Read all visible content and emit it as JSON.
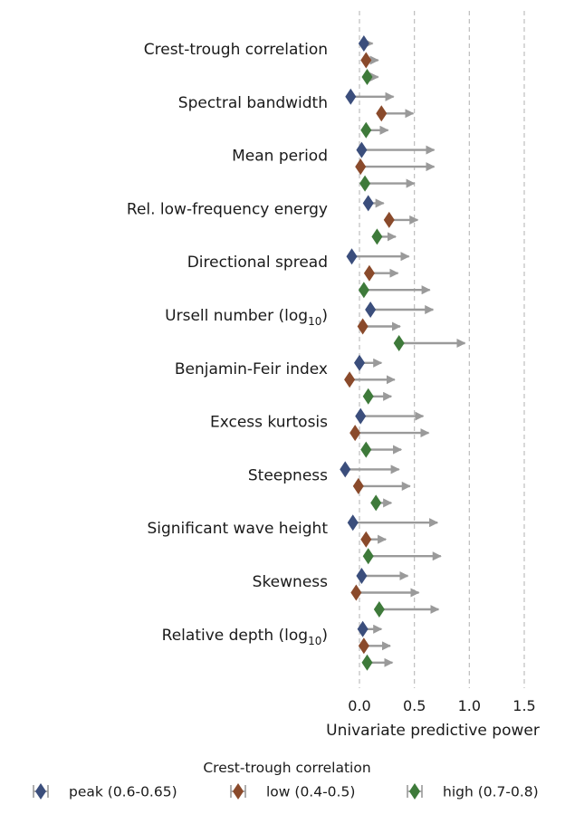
{
  "chart_data": {
    "type": "scatter",
    "xlabel": "Univariate predictive power",
    "xlim": [
      -0.15,
      1.6
    ],
    "xticks": [
      0.0,
      0.5,
      1.0,
      1.5
    ],
    "xtick_labels": [
      "0.0",
      "0.5",
      "1.0",
      "1.5"
    ],
    "gridlines": "vertical dashed at x ticks",
    "legend": {
      "title": "Crest-trough correlation",
      "placement": "bottom",
      "entries": [
        "peak (0.6-0.65)",
        "low (0.4-0.5)",
        "high (0.7-0.8)"
      ]
    },
    "series": [
      {
        "name": "peak (0.6-0.65)",
        "color": "#3b4e7c",
        "marker": "diamond"
      },
      {
        "name": "low (0.4-0.5)",
        "color": "#8a4a2b",
        "marker": "diamond"
      },
      {
        "name": "high (0.7-0.8)",
        "color": "#3e7a3a",
        "marker": "diamond"
      }
    ],
    "arrow_color": "#9a9a9a",
    "categories": [
      {
        "label": "Crest-trough correlation",
        "label_main": "Crest-trough correlation",
        "label_sub": "",
        "label_tail": "",
        "rows": [
          {
            "series": 0,
            "start": 0.04,
            "end": 0.12
          },
          {
            "series": 1,
            "start": 0.06,
            "end": 0.17
          },
          {
            "series": 2,
            "start": 0.07,
            "end": 0.17
          }
        ]
      },
      {
        "label": "Spectral bandwidth",
        "label_main": "Spectral bandwidth",
        "label_sub": "",
        "label_tail": "",
        "rows": [
          {
            "series": 0,
            "start": -0.08,
            "end": 0.31
          },
          {
            "series": 1,
            "start": 0.2,
            "end": 0.49
          },
          {
            "series": 2,
            "start": 0.06,
            "end": 0.26
          }
        ]
      },
      {
        "label": "Mean period",
        "label_main": "Mean period",
        "label_sub": "",
        "label_tail": "",
        "rows": [
          {
            "series": 0,
            "start": 0.02,
            "end": 0.68
          },
          {
            "series": 1,
            "start": 0.01,
            "end": 0.68
          },
          {
            "series": 2,
            "start": 0.05,
            "end": 0.5
          }
        ]
      },
      {
        "label": "Rel. low-frequency energy",
        "label_main": "Rel. low-frequency energy",
        "label_sub": "",
        "label_tail": "",
        "rows": [
          {
            "series": 0,
            "start": 0.08,
            "end": 0.22
          },
          {
            "series": 1,
            "start": 0.27,
            "end": 0.53
          },
          {
            "series": 2,
            "start": 0.16,
            "end": 0.33
          }
        ]
      },
      {
        "label": "Directional spread",
        "label_main": "Directional spread",
        "label_sub": "",
        "label_tail": "",
        "rows": [
          {
            "series": 0,
            "start": -0.07,
            "end": 0.45
          },
          {
            "series": 1,
            "start": 0.09,
            "end": 0.35
          },
          {
            "series": 2,
            "start": 0.04,
            "end": 0.64
          }
        ]
      },
      {
        "label": "Ursell number (log10)",
        "label_main": "Ursell number (log",
        "label_sub": "10",
        "label_tail": ")",
        "rows": [
          {
            "series": 0,
            "start": 0.1,
            "end": 0.67
          },
          {
            "series": 1,
            "start": 0.03,
            "end": 0.37
          },
          {
            "series": 2,
            "start": 0.36,
            "end": 0.96
          }
        ]
      },
      {
        "label": "Benjamin-Feir index",
        "label_main": "Benjamin-Feir index",
        "label_sub": "",
        "label_tail": "",
        "rows": [
          {
            "series": 0,
            "start": 0.0,
            "end": 0.2
          },
          {
            "series": 1,
            "start": -0.09,
            "end": 0.32
          },
          {
            "series": 2,
            "start": 0.08,
            "end": 0.29
          }
        ]
      },
      {
        "label": "Excess kurtosis",
        "label_main": "Excess kurtosis",
        "label_sub": "",
        "label_tail": "",
        "rows": [
          {
            "series": 0,
            "start": 0.01,
            "end": 0.58
          },
          {
            "series": 1,
            "start": -0.04,
            "end": 0.63
          },
          {
            "series": 2,
            "start": 0.06,
            "end": 0.38
          }
        ]
      },
      {
        "label": "Steepness",
        "label_main": "Steepness",
        "label_sub": "",
        "label_tail": "",
        "rows": [
          {
            "series": 0,
            "start": -0.13,
            "end": 0.36
          },
          {
            "series": 1,
            "start": -0.01,
            "end": 0.46
          },
          {
            "series": 2,
            "start": 0.15,
            "end": 0.29
          }
        ]
      },
      {
        "label": "Significant wave height",
        "label_main": "Significant wave height",
        "label_sub": "",
        "label_tail": "",
        "rows": [
          {
            "series": 0,
            "start": -0.06,
            "end": 0.71
          },
          {
            "series": 1,
            "start": 0.06,
            "end": 0.24
          },
          {
            "series": 2,
            "start": 0.08,
            "end": 0.74
          }
        ]
      },
      {
        "label": "Skewness",
        "label_main": "Skewness",
        "label_sub": "",
        "label_tail": "",
        "rows": [
          {
            "series": 0,
            "start": 0.02,
            "end": 0.44
          },
          {
            "series": 1,
            "start": -0.03,
            "end": 0.54
          },
          {
            "series": 2,
            "start": 0.18,
            "end": 0.72
          }
        ]
      },
      {
        "label": "Relative depth (log10)",
        "label_main": "Relative depth (log",
        "label_sub": "10",
        "label_tail": ")",
        "rows": [
          {
            "series": 0,
            "start": 0.03,
            "end": 0.2
          },
          {
            "series": 1,
            "start": 0.04,
            "end": 0.28
          },
          {
            "series": 2,
            "start": 0.07,
            "end": 0.3
          }
        ]
      }
    ]
  }
}
